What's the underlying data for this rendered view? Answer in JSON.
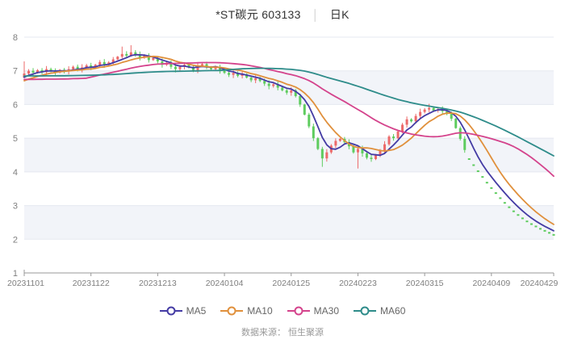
{
  "header": {
    "title": "*ST碳元 603133",
    "separator": "│",
    "period": "日K"
  },
  "footer": {
    "source": "数据来源： 恒生聚源"
  },
  "legend": [
    {
      "label": "MA5",
      "color": "#443ba4"
    },
    {
      "label": "MA10",
      "color": "#e0903c"
    },
    {
      "label": "MA30",
      "color": "#d4438c"
    },
    {
      "label": "MA60",
      "color": "#2e8c8a"
    }
  ],
  "chart_data": {
    "type": "candlestick",
    "title": "*ST碳元 603133 日K",
    "xlabel": "",
    "ylabel": "",
    "ylim": [
      1,
      8
    ],
    "y_ticks": [
      1,
      2,
      3,
      4,
      5,
      6,
      7,
      8
    ],
    "grid": true,
    "shaded_value_bands": [
      [
        7,
        6
      ],
      [
        5,
        4
      ],
      [
        3,
        2
      ]
    ],
    "legend_position": "bottom",
    "x_tick_indices": [
      0,
      15,
      30,
      45,
      60,
      75,
      90,
      105,
      119
    ],
    "x_tick_labels": [
      "20231101",
      "20231122",
      "20231213",
      "20240104",
      "20240125",
      "20240223",
      "20240315",
      "20240409",
      "20240429"
    ],
    "open_first": 6.8,
    "one_line_from_index": 100,
    "closes": [
      6.92,
      7.0,
      6.95,
      7.02,
      6.96,
      7.05,
      7.0,
      6.95,
      7.03,
      6.98,
      7.05,
      7.12,
      7.05,
      7.1,
      7.16,
      7.1,
      7.18,
      7.26,
      7.18,
      7.25,
      7.34,
      7.42,
      7.5,
      7.45,
      7.55,
      7.48,
      7.4,
      7.45,
      7.32,
      7.38,
      7.28,
      7.18,
      7.24,
      7.12,
      7.05,
      7.12,
      7.18,
      7.1,
      7.02,
      7.15,
      7.2,
      7.12,
      7.05,
      7.1,
      7.0,
      6.94,
      6.88,
      6.94,
      6.85,
      6.9,
      6.8,
      6.72,
      6.78,
      6.7,
      6.62,
      6.55,
      6.6,
      6.5,
      6.42,
      6.35,
      6.42,
      6.25,
      6.0,
      5.7,
      5.35,
      5.0,
      4.68,
      4.4,
      4.58,
      4.78,
      4.92,
      4.98,
      4.88,
      4.76,
      4.58,
      4.68,
      4.55,
      4.42,
      4.38,
      4.5,
      4.62,
      4.82,
      5.05,
      5.0,
      5.2,
      5.4,
      5.56,
      5.5,
      5.66,
      5.78,
      5.85,
      5.9,
      5.82,
      5.86,
      5.8,
      5.72,
      5.58,
      5.3,
      4.98,
      4.65,
      4.38,
      4.2,
      4.02,
      3.85,
      3.68,
      3.52,
      3.37,
      3.22,
      3.08,
      2.95,
      2.83,
      2.72,
      2.62,
      2.53,
      2.45,
      2.38,
      2.31,
      2.25,
      2.19,
      2.13
    ],
    "wick_overrides": {
      "0": {
        "h": 7.28
      },
      "22": {
        "h": 7.72
      },
      "24": {
        "h": 7.76
      },
      "67": {
        "l": 4.15
      },
      "75": {
        "l": 4.1
      },
      "91": {
        "h": 6.02
      }
    },
    "ma_windows": [
      5,
      10,
      30,
      60
    ],
    "seed_closes": [
      6.95,
      6.95,
      6.95,
      6.95,
      6.95,
      6.95,
      6.95,
      6.95,
      6.95,
      6.95,
      6.95,
      6.95,
      6.95,
      6.95,
      6.95,
      6.95,
      6.95,
      6.95,
      6.95,
      6.95,
      6.95,
      6.95,
      6.95,
      6.95,
      6.95,
      6.95,
      6.95,
      6.95,
      6.95,
      6.95,
      6.95,
      6.95,
      6.95,
      6.95,
      6.95,
      6.95,
      6.95,
      6.95,
      6.95,
      6.95,
      6.95,
      6.95,
      6.95,
      6.95,
      6.95,
      6.2,
      6.25,
      6.3,
      6.35,
      6.42,
      6.48,
      6.52,
      6.56,
      6.6,
      6.64,
      6.68,
      6.72,
      6.76,
      6.8,
      6.85
    ],
    "colors": {
      "up": "#ec6a6a",
      "down": "#5ecc5e",
      "band": "#f2f4f9",
      "grid": "#e5e8f0",
      "axis": "#999999",
      "tick_label": "#7f7f7f"
    }
  }
}
